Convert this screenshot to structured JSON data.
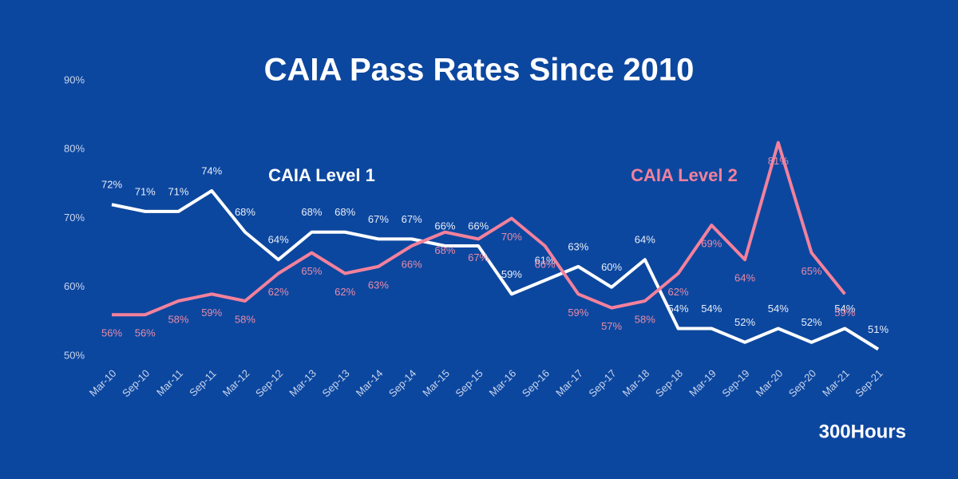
{
  "chart_data": {
    "type": "line",
    "title": "CAIA Pass Rates Since 2010",
    "source": "300Hours",
    "categories": [
      "Mar-10",
      "Sep-10",
      "Mar-11",
      "Sep-11",
      "Mar-12",
      "Sep-12",
      "Mar-13",
      "Sep-13",
      "Mar-14",
      "Sep-14",
      "Mar-15",
      "Sep-15",
      "Mar-16",
      "Sep-16",
      "Mar-17",
      "Sep-17",
      "Mar-18",
      "Sep-18",
      "Mar-19",
      "Sep-19",
      "Mar-20",
      "Sep-20",
      "Mar-21",
      "Sep-21"
    ],
    "series": [
      {
        "name": "CAIA Level 1",
        "color": "#ffffff",
        "label_color": "#e8eef8",
        "values": [
          72,
          71,
          71,
          74,
          68,
          64,
          68,
          68,
          67,
          67,
          66,
          66,
          59,
          61,
          63,
          60,
          64,
          54,
          54,
          52,
          54,
          52,
          54,
          51
        ],
        "value_labels": [
          "72%",
          "71%",
          "71%",
          "74%",
          "68%",
          "64%",
          "68%",
          "68%",
          "67%",
          "67%",
          "66%",
          "66%",
          "59%",
          "61%",
          "63%",
          "60%",
          "64%",
          "54%",
          "54%",
          "52%",
          "54%",
          "52%",
          "54%",
          "51%"
        ]
      },
      {
        "name": "CAIA Level 2",
        "color": "#f3819c",
        "label_color": "#e98ba8",
        "values": [
          56,
          56,
          58,
          59,
          58,
          62,
          65,
          62,
          63,
          66,
          68,
          67,
          70,
          66,
          59,
          57,
          58,
          62,
          69,
          64,
          81,
          65,
          59,
          null
        ],
        "value_labels": [
          "56%",
          "56%",
          "58%",
          "59%",
          "58%",
          "62%",
          "65%",
          "62%",
          "63%",
          "66%",
          "68%",
          "67%",
          "70%",
          "66%",
          "59%",
          "57%",
          "58%",
          "62%",
          "69%",
          "64%",
          "81%",
          "65%",
          "59%",
          null
        ]
      }
    ],
    "ylim": [
      50,
      90
    ],
    "yticks": [
      {
        "value": 50,
        "label": "50%"
      },
      {
        "value": 60,
        "label": "60%"
      },
      {
        "value": 70,
        "label": "70%"
      },
      {
        "value": 80,
        "label": "80%"
      },
      {
        "value": 90,
        "label": "90%"
      }
    ],
    "grid": false
  }
}
